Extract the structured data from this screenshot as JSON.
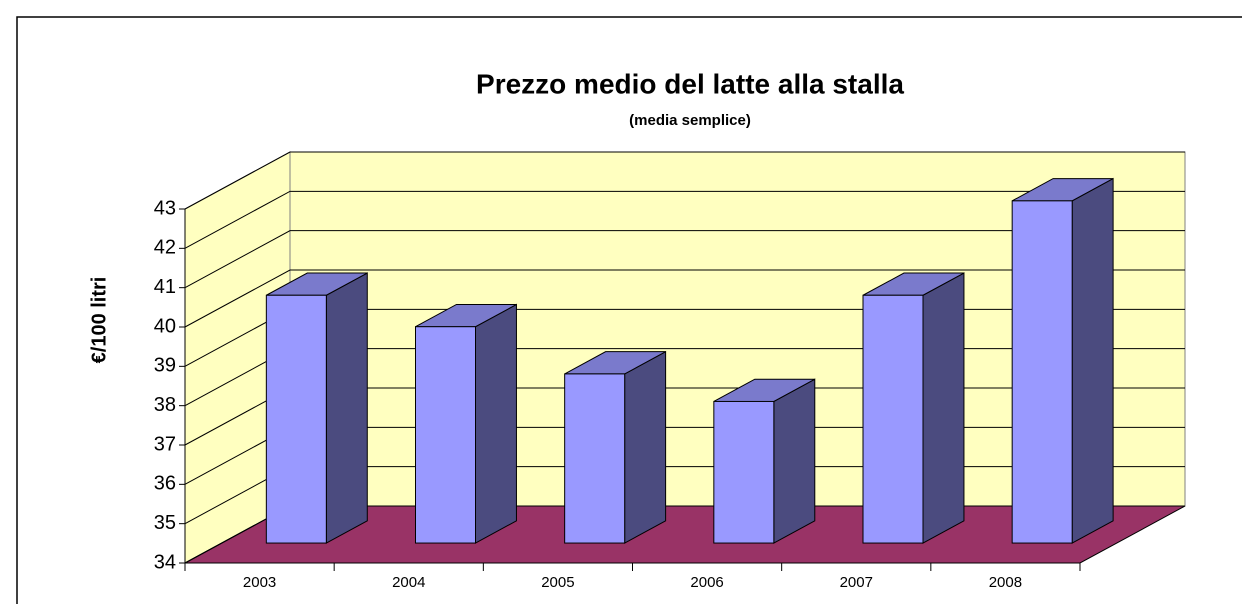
{
  "chart_data": {
    "type": "bar3d",
    "title": "Prezzo medio del latte alla stalla",
    "subtitle": "(media semplice)",
    "y_label": "€/100 litri",
    "categories": [
      "2003",
      "2004",
      "2005",
      "2006",
      "2007",
      "2008"
    ],
    "values": [
      40.3,
      39.5,
      38.3,
      37.6,
      40.3,
      42.7
    ],
    "color": "#9999ff",
    "wall_color": "#ffffc0",
    "floor_color": "#993366",
    "ylim": [
      34,
      43
    ],
    "yticks": [
      34,
      35,
      36,
      37,
      38,
      39,
      40,
      41,
      42,
      43
    ],
    "grid": true
  }
}
